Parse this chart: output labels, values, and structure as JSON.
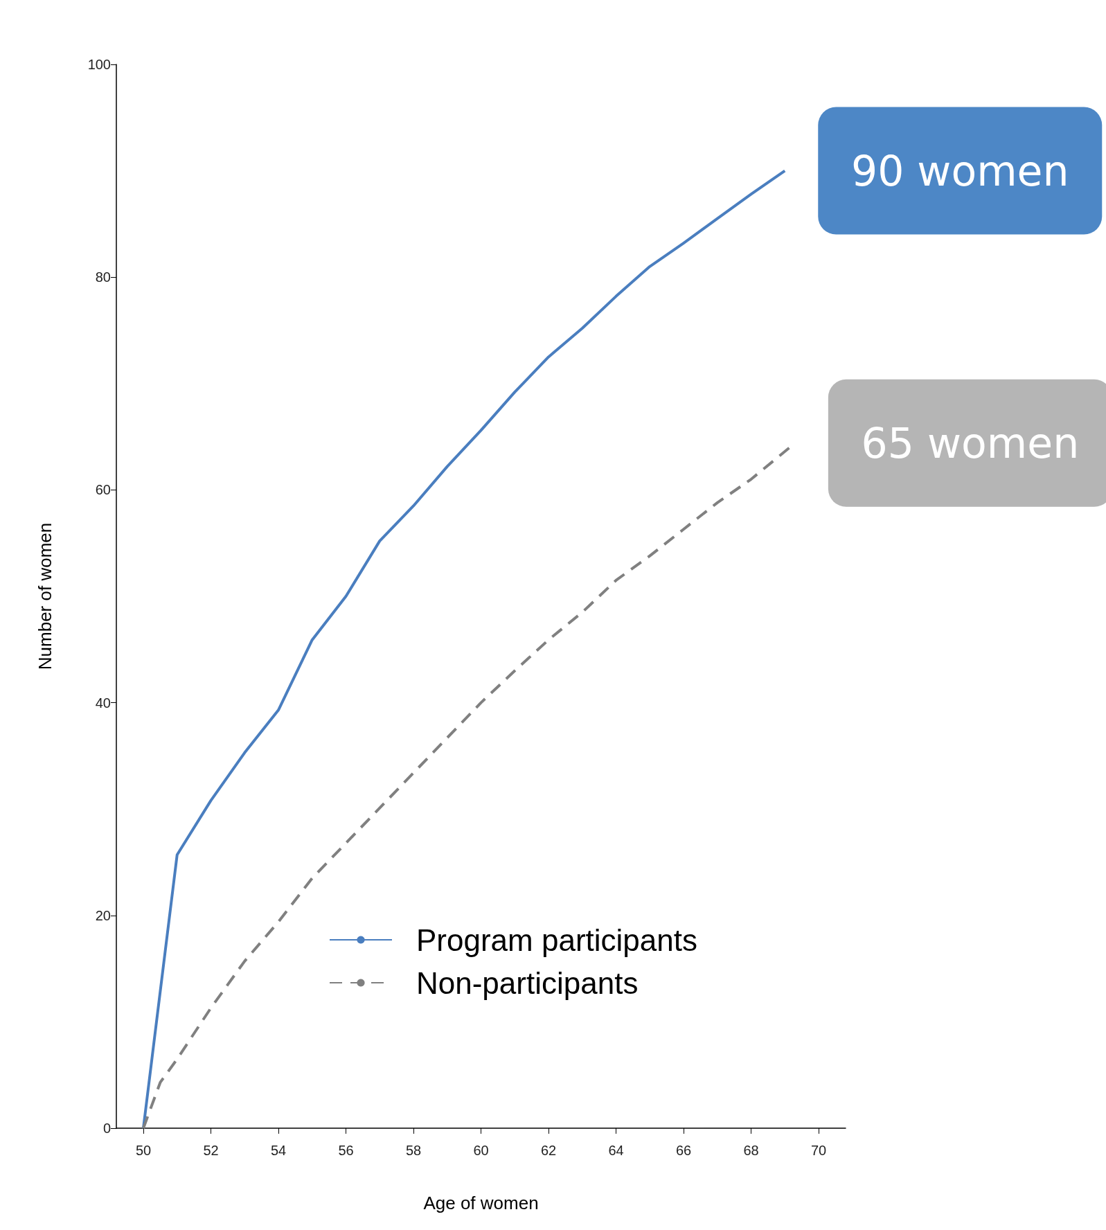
{
  "chart_data": {
    "type": "line",
    "xlabel": "Age of women",
    "ylabel": "Number of women",
    "xlim": [
      49.2,
      70.8
    ],
    "xticks": [
      50,
      52,
      54,
      56,
      58,
      60,
      62,
      64,
      66,
      68,
      70
    ],
    "ylim": [
      0,
      100
    ],
    "yticks": [
      0,
      20,
      40,
      60,
      80,
      100
    ],
    "grid": false,
    "legend": "bottom",
    "marker": "none",
    "series": [
      {
        "name": "Program participants",
        "color": "#4a7ebf",
        "line_style": "solid",
        "x": [
          50,
          51,
          52,
          53,
          54,
          55,
          56,
          57,
          58,
          59,
          60,
          61,
          62,
          63,
          64,
          65,
          66,
          67,
          68,
          69
        ],
        "values": [
          0,
          25.7,
          30.8,
          35.3,
          39.3,
          45.9,
          50,
          55.2,
          58.5,
          62.2,
          65.6,
          69.2,
          72.5,
          75.2,
          78.2,
          81,
          83.2,
          85.5,
          87.8,
          90
        ]
      },
      {
        "name": "Non-participants",
        "color": "#808080",
        "line_style": "dashed",
        "x": [
          50,
          50.5,
          51,
          52,
          53,
          54,
          55,
          56,
          57,
          58,
          59,
          60,
          61,
          62,
          63,
          64,
          65,
          66,
          67,
          68,
          69.3
        ],
        "values": [
          0,
          4.3,
          6.5,
          11.3,
          15.7,
          19.4,
          23.5,
          26.8,
          30.1,
          33.4,
          36.7,
          40,
          43,
          45.9,
          48.5,
          51.5,
          53.8,
          56.3,
          58.8,
          61,
          64.4
        ]
      }
    ],
    "annotations": [
      {
        "text": "90 women",
        "x": 69,
        "y": 90
      },
      {
        "text": "65 women",
        "x": 69.3,
        "y": 64.4
      }
    ]
  }
}
